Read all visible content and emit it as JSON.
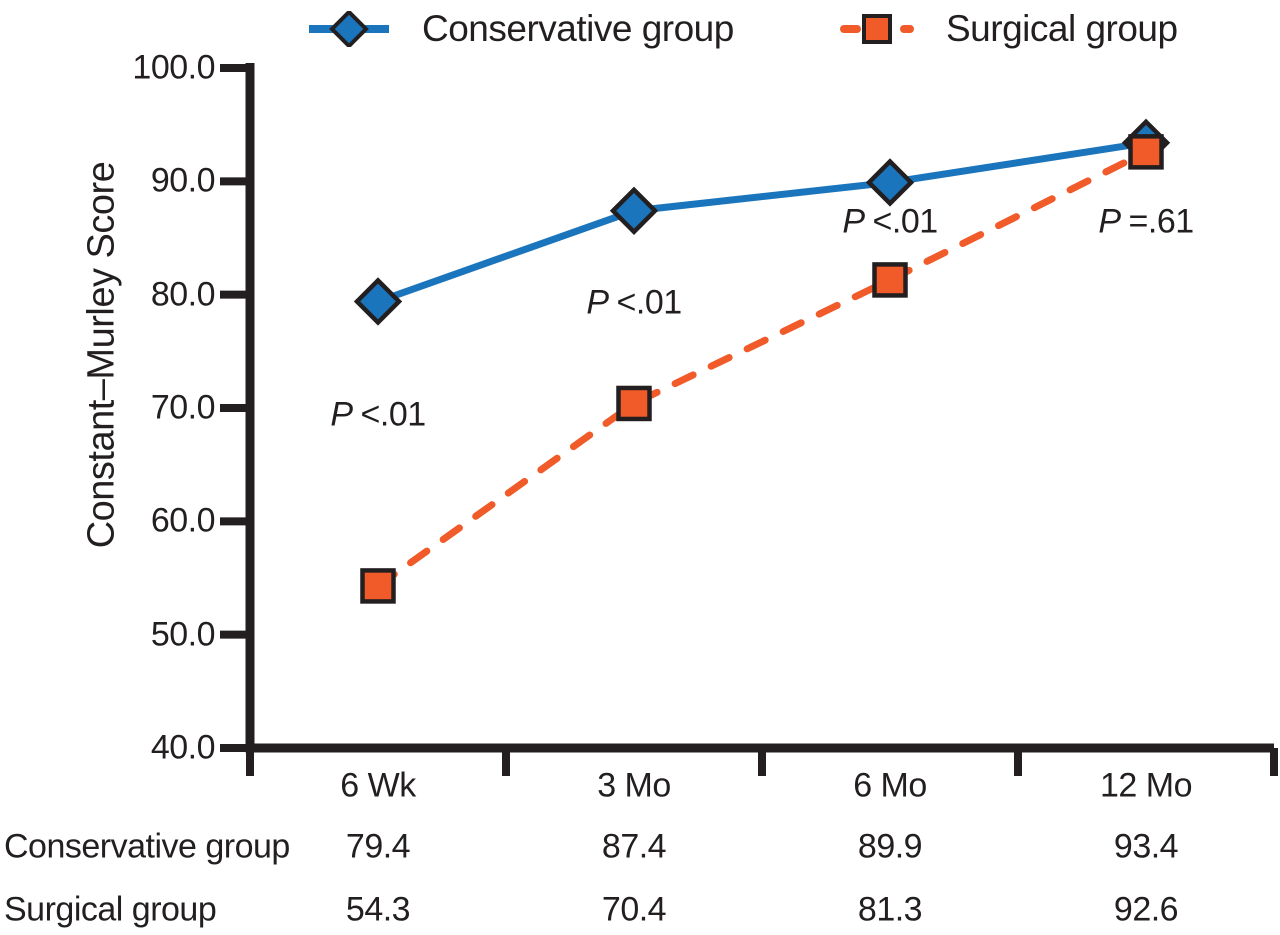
{
  "chart_data": {
    "type": "line",
    "title": "",
    "xlabel": "",
    "ylabel": "Constant–Murley Score",
    "categories": [
      "6 Wk",
      "3 Mo",
      "6 Mo",
      "12 Mo"
    ],
    "series": [
      {
        "name": "Conservative group",
        "values": [
          79.4,
          87.4,
          89.9,
          93.4
        ],
        "color": "#1b75bc",
        "marker": "diamond",
        "line_style": "solid"
      },
      {
        "name": "Surgical group",
        "values": [
          54.3,
          70.4,
          81.3,
          92.6
        ],
        "color": "#f15a29",
        "marker": "square",
        "line_style": "dashed"
      }
    ],
    "ylim": [
      40.0,
      100.0
    ],
    "y_ticks": [
      "100.0",
      "90.0",
      "80.0",
      "70.0",
      "60.0",
      "50.0",
      "40.0"
    ],
    "grid": false,
    "legend_position": "top",
    "annotations": [
      {
        "text": "P <.01",
        "p_symbol": "P",
        "relation": "<.01",
        "x_index": 0,
        "y_value": 69.4
      },
      {
        "text": "P <.01",
        "p_symbol": "P",
        "relation": "<.01",
        "x_index": 1,
        "y_value": 79.3
      },
      {
        "text": "P <.01",
        "p_symbol": "P",
        "relation": "<.01",
        "x_index": 2,
        "y_value": 86.4
      },
      {
        "text": "P =.61",
        "p_symbol": "P",
        "relation": "=.61",
        "x_index": 3,
        "y_value": 86.4
      }
    ],
    "table": {
      "rows": [
        {
          "label": "Conservative group",
          "values": [
            "79.4",
            "87.4",
            "89.9",
            "93.4"
          ]
        },
        {
          "label": "Surgical group",
          "values": [
            "54.3",
            "70.4",
            "81.3",
            "92.6"
          ]
        }
      ]
    },
    "colors": {
      "axis": "#231f20",
      "text": "#231f20",
      "background": "#ffffff"
    }
  }
}
